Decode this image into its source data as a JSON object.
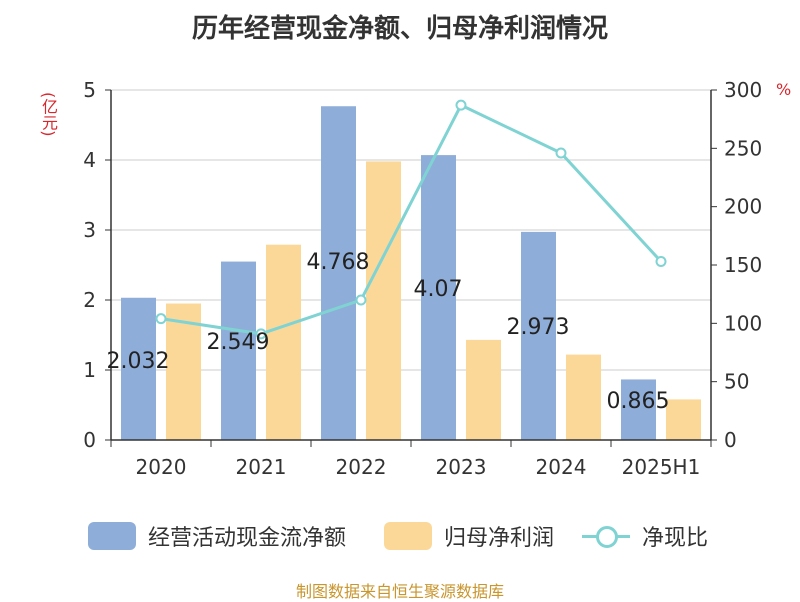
{
  "title": "历年经营现金净额、归母净利润情况",
  "unit_left": "(亿元)",
  "unit_right": "%",
  "source": "制图数据来自恒生聚源数据库",
  "colors": {
    "cash_flow": "#8eadd9",
    "net_profit": "#fcd898",
    "ratio": "#7fd3d3",
    "unit": "#d9262c",
    "source": "#c9962e"
  },
  "legend": {
    "cash_flow": "经营活动现金流净额",
    "net_profit": "归母净利润",
    "ratio": "净现比"
  },
  "chart_data": {
    "type": "bar",
    "title": "历年经营现金净额、归母净利润情况",
    "categories": [
      "2020",
      "2021",
      "2022",
      "2023",
      "2024",
      "2025H1"
    ],
    "series": [
      {
        "name": "经营活动现金流净额",
        "type": "bar",
        "axis": "left",
        "values": [
          2.032,
          2.549,
          4.768,
          4.07,
          2.973,
          0.865
        ],
        "labels": [
          "2.032",
          "2.549",
          "4.768",
          "4.07",
          "2.973",
          "0.865"
        ]
      },
      {
        "name": "归母净利润",
        "type": "bar",
        "axis": "left",
        "values": [
          1.95,
          2.79,
          3.98,
          1.43,
          1.22,
          0.58
        ]
      },
      {
        "name": "净现比",
        "type": "line",
        "axis": "right",
        "values": [
          104,
          91,
          120,
          287,
          246,
          153
        ]
      }
    ],
    "y_left": {
      "min": 0,
      "max": 5,
      "ticks": [
        "0",
        "1",
        "2",
        "3",
        "4",
        "5"
      ],
      "label": "(亿元)"
    },
    "y_right": {
      "min": 0,
      "max": 300,
      "ticks": [
        "0",
        "50",
        "100",
        "150",
        "200",
        "250",
        "300"
      ],
      "label": "%"
    },
    "grid": true,
    "legend_position": "bottom"
  }
}
